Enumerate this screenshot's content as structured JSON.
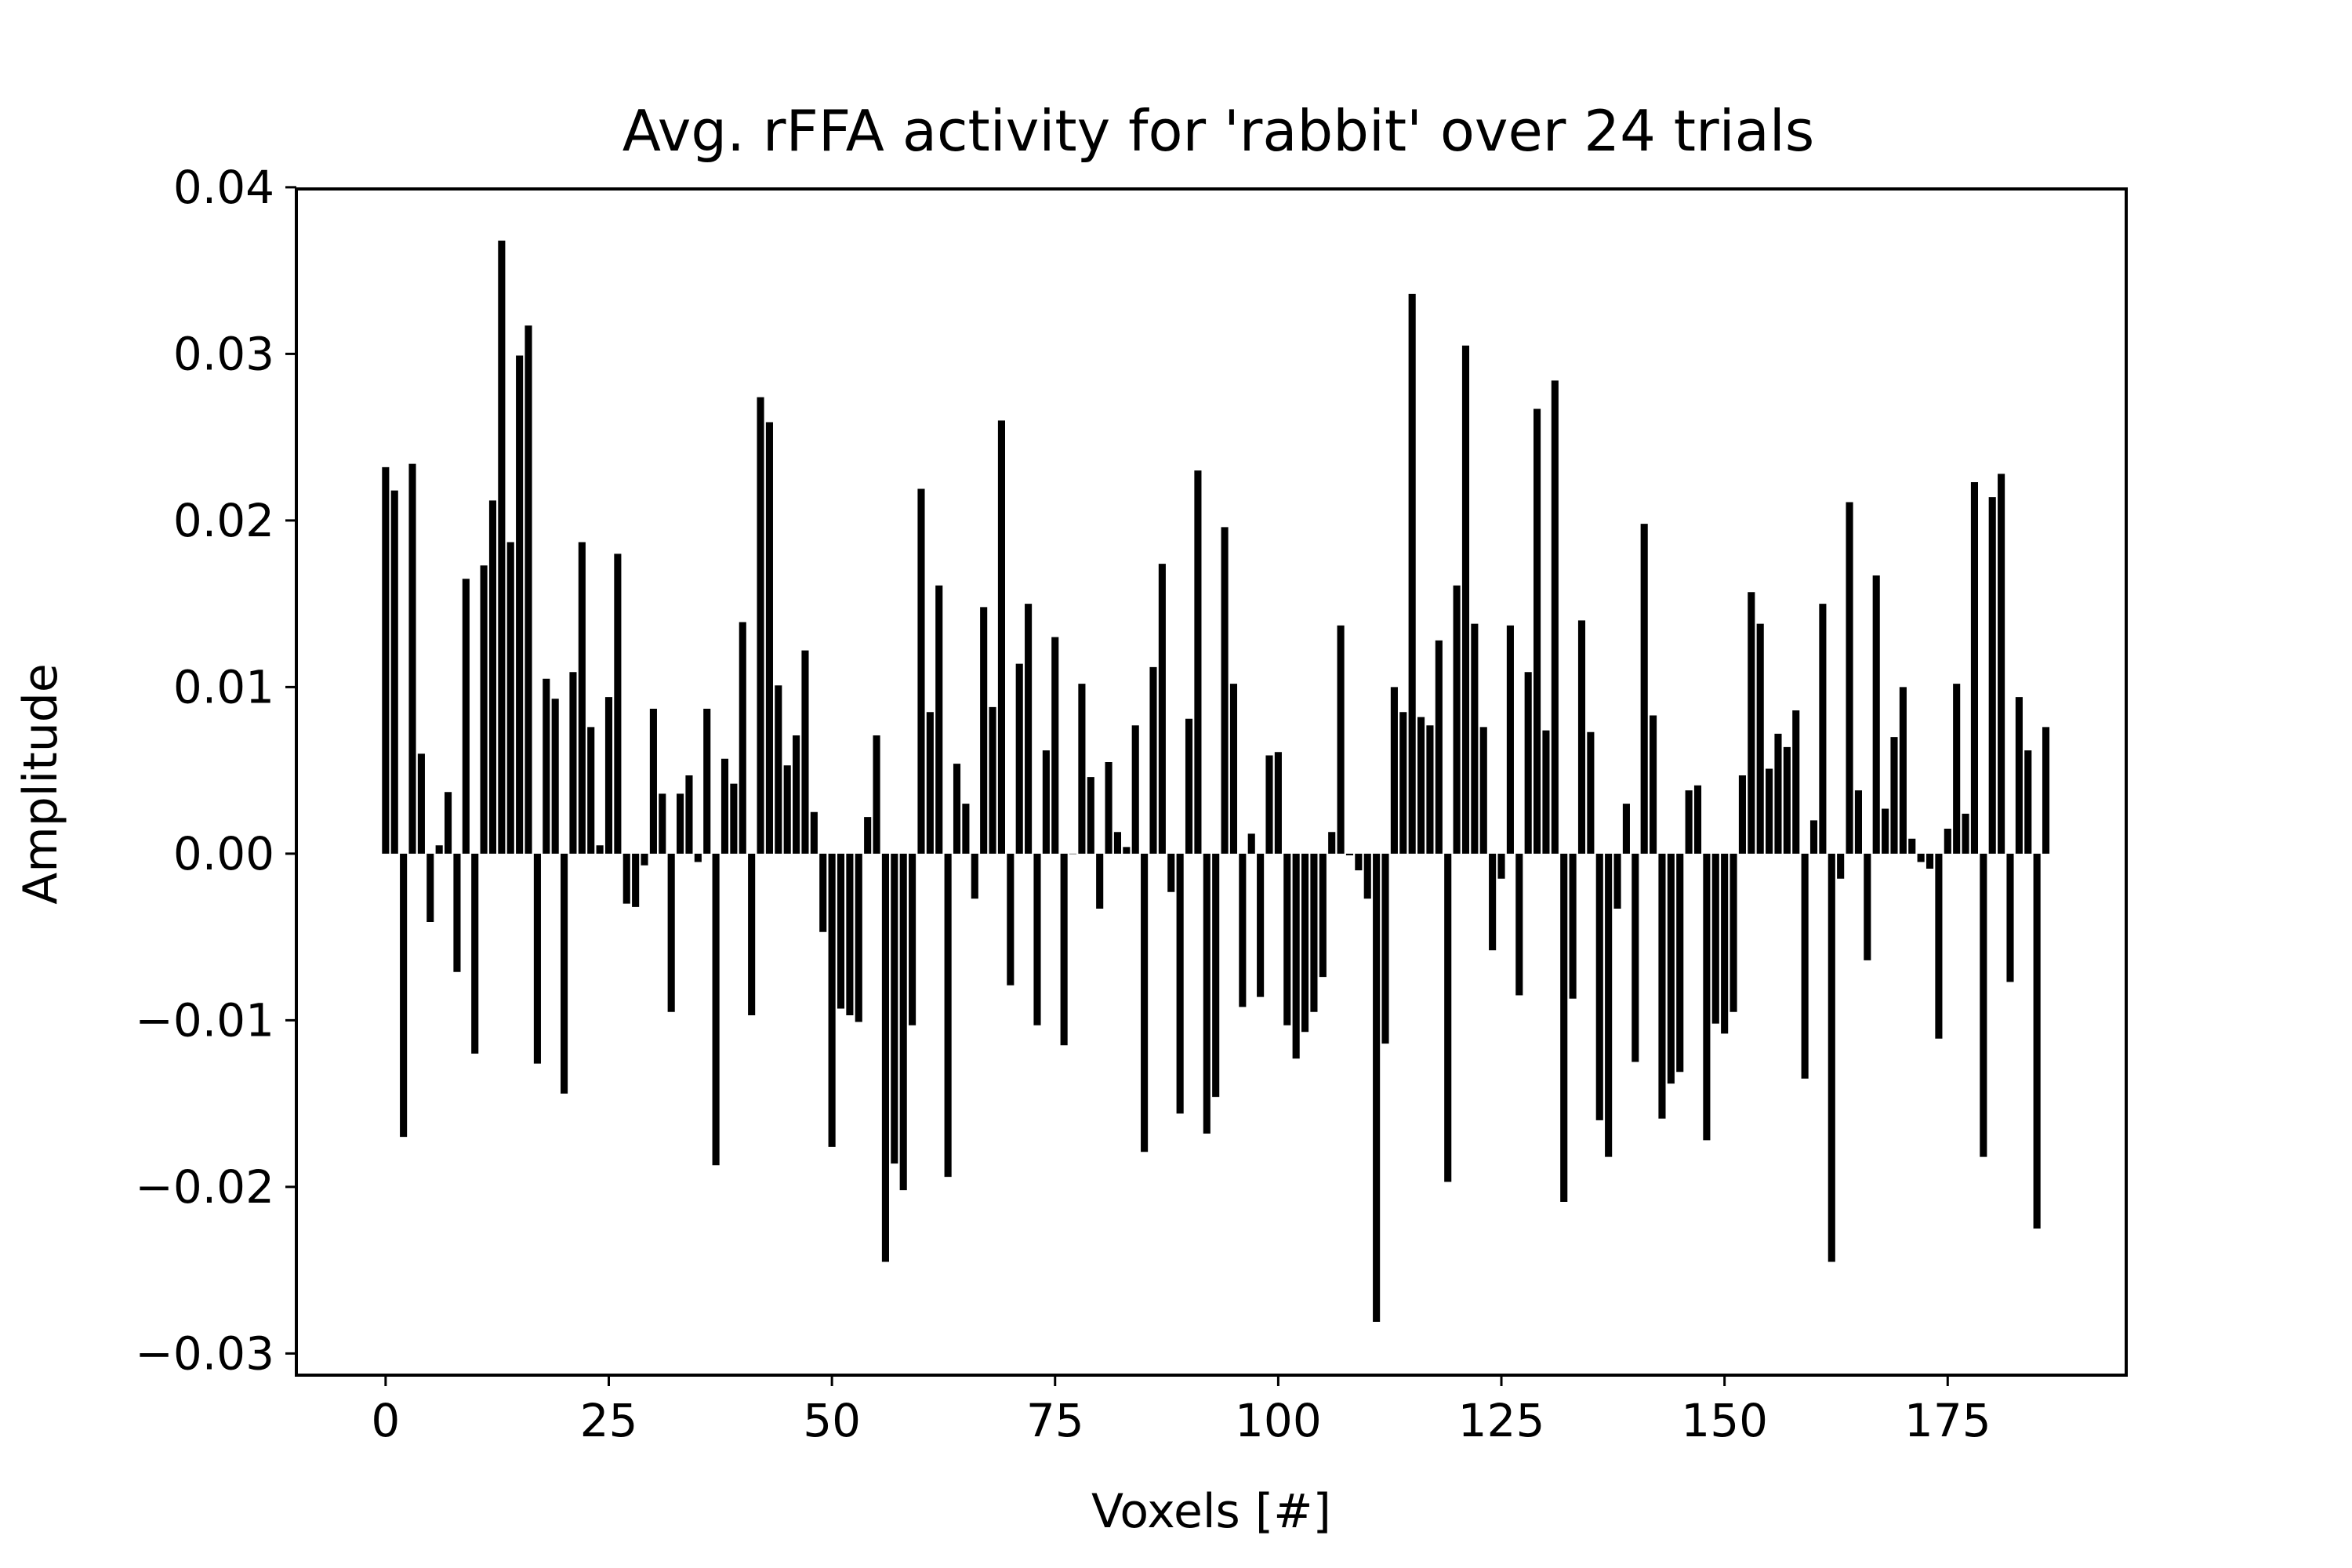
{
  "chart_data": {
    "type": "bar",
    "title": "Avg. rFFA activity for 'rabbit' over 24 trials",
    "xlabel": "Voxels [#]",
    "ylabel": "Amplitude",
    "xlim": [
      -10,
      195
    ],
    "ylim": [
      -0.0313,
      0.0399
    ],
    "xticks": [
      0,
      25,
      50,
      75,
      100,
      125,
      150,
      175
    ],
    "xtick_labels": [
      "0",
      "25",
      "50",
      "75",
      "100",
      "125",
      "150",
      "175"
    ],
    "yticks": [
      -0.03,
      -0.02,
      -0.01,
      0.0,
      0.01,
      0.02,
      0.03,
      0.04
    ],
    "ytick_labels": [
      "−0.03",
      "−0.02",
      "−0.01",
      "0.00",
      "0.01",
      "0.02",
      "0.03",
      "0.04"
    ],
    "grid": false,
    "bar_color": "#000000",
    "x": [
      0,
      1,
      2,
      3,
      4,
      5,
      6,
      7,
      8,
      9,
      10,
      11,
      12,
      13,
      14,
      15,
      16,
      17,
      18,
      19,
      20,
      21,
      22,
      23,
      24,
      25,
      26,
      27,
      28,
      29,
      30,
      31,
      32,
      33,
      34,
      35,
      36,
      37,
      38,
      39,
      40,
      41,
      42,
      43,
      44,
      45,
      46,
      47,
      48,
      49,
      50,
      51,
      52,
      53,
      54,
      55,
      56,
      57,
      58,
      59,
      60,
      61,
      62,
      63,
      64,
      65,
      66,
      67,
      68,
      69,
      70,
      71,
      72,
      73,
      74,
      75,
      76,
      77,
      78,
      79,
      80,
      81,
      82,
      83,
      84,
      85,
      86,
      87,
      88,
      89,
      90,
      91,
      92,
      93,
      94,
      95,
      96,
      97,
      98,
      99,
      100,
      101,
      102,
      103,
      104,
      105,
      106,
      107,
      108,
      109,
      110,
      111,
      112,
      113,
      114,
      115,
      116,
      117,
      118,
      119,
      120,
      121,
      122,
      123,
      124,
      125,
      126,
      127,
      128,
      129,
      130,
      131,
      132,
      133,
      134,
      135,
      136,
      137,
      138,
      139,
      140,
      141,
      142,
      143,
      144,
      145,
      146,
      147,
      148,
      149,
      150,
      151,
      152,
      153,
      154,
      155,
      156,
      157,
      158,
      159,
      160,
      161,
      162,
      163,
      164,
      165,
      166,
      167,
      168,
      169,
      170,
      171,
      172,
      173,
      174,
      175,
      176,
      177,
      178,
      179,
      180,
      181,
      182,
      183,
      184,
      185,
      186
    ],
    "values": [
      0.0232,
      0.0218,
      -0.017,
      0.0234,
      0.006,
      -0.0041,
      0.0005,
      0.0037,
      -0.0071,
      0.0165,
      -0.012,
      0.0173,
      0.0212,
      0.0368,
      0.0187,
      0.0299,
      0.0317,
      -0.0126,
      0.0105,
      0.0093,
      -0.0144,
      0.0109,
      0.0187,
      0.0076,
      0.0005,
      0.0094,
      0.018,
      -0.003,
      -0.0032,
      -0.0007,
      0.0087,
      0.0036,
      -0.0095,
      0.0036,
      0.0047,
      -0.0005,
      0.0087,
      -0.0187,
      0.0057,
      0.0042,
      0.0139,
      -0.0097,
      0.0274,
      0.0259,
      0.0101,
      0.0053,
      0.0071,
      0.0122,
      0.0025,
      -0.0047,
      -0.0176,
      -0.0093,
      -0.0097,
      -0.0101,
      0.0022,
      0.0071,
      -0.0245,
      -0.0186,
      -0.0202,
      -0.0103,
      0.0219,
      0.0085,
      0.0161,
      -0.0194,
      0.0054,
      0.003,
      -0.0027,
      0.0148,
      0.0088,
      0.026,
      -0.0079,
      0.0114,
      0.015,
      -0.0103,
      0.0062,
      0.013,
      -0.0115,
      0.0,
      0.0102,
      0.0046,
      -0.0033,
      0.0055,
      0.0013,
      0.0004,
      0.0077,
      -0.0179,
      0.0112,
      0.0174,
      -0.0023,
      -0.0156,
      0.0081,
      0.023,
      -0.0168,
      -0.0146,
      0.0196,
      0.0102,
      -0.0092,
      0.0012,
      -0.0086,
      0.0059,
      0.0061,
      -0.0103,
      -0.0123,
      -0.0107,
      -0.0095,
      -0.0074,
      0.0013,
      0.0137,
      -0.0001,
      -0.001,
      -0.0027,
      -0.0281,
      -0.0114,
      0.01,
      0.0085,
      0.0336,
      0.0082,
      0.0077,
      0.0128,
      -0.0197,
      0.0161,
      0.0305,
      0.0138,
      0.0076,
      -0.0058,
      -0.0015,
      0.0137,
      -0.0085,
      0.0109,
      0.0267,
      0.0074,
      0.0284,
      -0.0209,
      -0.0087,
      0.014,
      0.0073,
      -0.016,
      -0.0182,
      -0.0033,
      0.003,
      -0.0125,
      0.0198,
      0.0083,
      -0.0159,
      -0.0138,
      -0.0131,
      0.0038,
      0.0041,
      -0.0172,
      -0.0102,
      -0.0108,
      -0.0095,
      0.0047,
      0.0157,
      0.0138,
      0.0051,
      0.0072,
      0.0064,
      0.0086,
      -0.0135,
      0.002,
      0.015,
      -0.0245,
      -0.0015,
      0.0211,
      0.0038,
      -0.0064,
      0.0167,
      0.0027,
      0.007,
      0.01,
      0.0009,
      -0.0005,
      -0.0009,
      -0.0111,
      0.0015,
      0.0102,
      0.0024,
      0.0223,
      -0.0182,
      0.0214,
      0.0228,
      -0.0077,
      0.0094,
      0.0062,
      -0.0225,
      0.0076
    ]
  }
}
